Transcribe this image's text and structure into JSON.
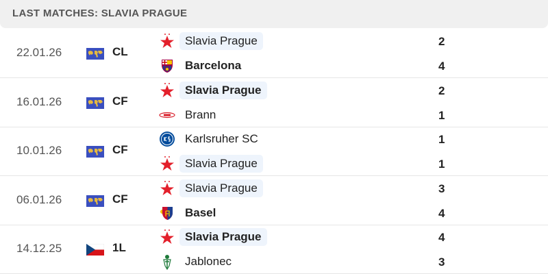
{
  "header": {
    "title": "LAST MATCHES: SLAVIA PRAGUE"
  },
  "colors": {
    "highlight": "#eef4fc",
    "slavia_red": "#e3202b",
    "world_flag": "#3a4fbf"
  },
  "matches": [
    {
      "date": "22.01.26",
      "competition": "CL",
      "flag_icon": "world-icon",
      "home": {
        "name": "Slavia Prague",
        "score": "2",
        "logo": "slavia-star-icon",
        "winner": false,
        "highlight": true
      },
      "away": {
        "name": "Barcelona",
        "score": "4",
        "logo": "barcelona-crest-icon",
        "winner": true,
        "highlight": false
      }
    },
    {
      "date": "16.01.26",
      "competition": "CF",
      "flag_icon": "world-icon",
      "home": {
        "name": "Slavia Prague",
        "score": "2",
        "logo": "slavia-star-icon",
        "winner": true,
        "highlight": true
      },
      "away": {
        "name": "Brann",
        "score": "1",
        "logo": "brann-logo-icon",
        "winner": false,
        "highlight": false
      }
    },
    {
      "date": "10.01.26",
      "competition": "CF",
      "flag_icon": "world-icon",
      "home": {
        "name": "Karlsruher SC",
        "score": "1",
        "logo": "ksc-logo-icon",
        "winner": false,
        "highlight": false
      },
      "away": {
        "name": "Slavia Prague",
        "score": "1",
        "logo": "slavia-star-icon",
        "winner": false,
        "highlight": true
      }
    },
    {
      "date": "06.01.26",
      "competition": "CF",
      "flag_icon": "world-icon",
      "home": {
        "name": "Slavia Prague",
        "score": "3",
        "logo": "slavia-star-icon",
        "winner": false,
        "highlight": true
      },
      "away": {
        "name": "Basel",
        "score": "4",
        "logo": "basel-crest-icon",
        "winner": true,
        "highlight": false
      }
    },
    {
      "date": "14.12.25",
      "competition": "1L",
      "flag_icon": "czech-flag-icon",
      "home": {
        "name": "Slavia Prague",
        "score": "4",
        "logo": "slavia-star-icon",
        "winner": true,
        "highlight": true
      },
      "away": {
        "name": "Jablonec",
        "score": "3",
        "logo": "jablonec-logo-icon",
        "winner": false,
        "highlight": false
      }
    }
  ]
}
